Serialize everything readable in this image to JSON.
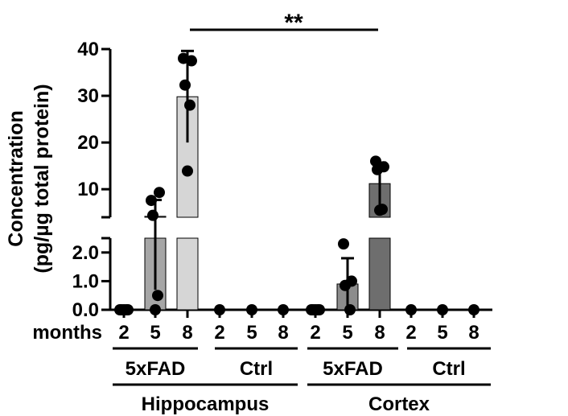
{
  "chart_data": {
    "type": "bar",
    "ylabel_line1": "Concentration",
    "ylabel_line2": "(pg/µg total protein)",
    "x_prefix": "months",
    "y_axis_upper": {
      "ylim": [
        4,
        40
      ],
      "ticks": [
        "10",
        "20",
        "30",
        "40"
      ],
      "tick_values": [
        10,
        20,
        30,
        40
      ]
    },
    "y_axis_lower": {
      "ylim": [
        0,
        2.5
      ],
      "ticks": [
        "0.0",
        "1.0",
        "2.0"
      ],
      "tick_values": [
        0,
        1,
        2
      ]
    },
    "groups": [
      {
        "tissue": "Hippocampus",
        "genotype": "5xFAD",
        "bars": [
          {
            "month": "2",
            "mean": 0.0,
            "sd": 0.0,
            "color": "#9e9e9e",
            "points": [
              0,
              0,
              0,
              0,
              0
            ]
          },
          {
            "month": "5",
            "mean": 4.2,
            "sd": 3.5,
            "color": "#a6a6a6",
            "points": [
              7.6,
              9.3,
              4.4,
              0.5,
              0.0
            ]
          },
          {
            "month": "8",
            "mean": 29.8,
            "sd": 9.8,
            "color": "#d6d6d6",
            "points": [
              38.0,
              37.5,
              32.3,
              28.0,
              13.9
            ]
          }
        ]
      },
      {
        "tissue": "Hippocampus",
        "genotype": "Ctrl",
        "bars": [
          {
            "month": "2",
            "mean": 0.0,
            "sd": 0.0,
            "color": "#9e9e9e",
            "points": [
              0.0
            ]
          },
          {
            "month": "5",
            "mean": 0.0,
            "sd": 0.0,
            "color": "#9e9e9e",
            "points": [
              0.0
            ]
          },
          {
            "month": "8",
            "mean": 0.0,
            "sd": 0.0,
            "color": "#9e9e9e",
            "points": [
              0.0
            ]
          }
        ]
      },
      {
        "tissue": "Cortex",
        "genotype": "5xFAD",
        "bars": [
          {
            "month": "2",
            "mean": 0.0,
            "sd": 0.0,
            "color": "#8c8c8c",
            "points": [
              0,
              0,
              0,
              0,
              0
            ]
          },
          {
            "month": "5",
            "mean": 0.9,
            "sd": 0.9,
            "color": "#8c8c8c",
            "points": [
              2.3,
              1.0,
              0.85,
              0.0
            ]
          },
          {
            "month": "8",
            "mean": 11.2,
            "sd": 4.5,
            "color": "#6e6e6e",
            "points": [
              16.0,
              14.8,
              14.2,
              5.7,
              5.5
            ]
          }
        ]
      },
      {
        "tissue": "Cortex",
        "genotype": "Ctrl",
        "bars": [
          {
            "month": "2",
            "mean": 0.0,
            "sd": 0.0,
            "color": "#9e9e9e",
            "points": [
              0.0
            ]
          },
          {
            "month": "5",
            "mean": 0.0,
            "sd": 0.0,
            "color": "#9e9e9e",
            "points": [
              0.0
            ]
          },
          {
            "month": "8",
            "mean": 0.0,
            "sd": 0.0,
            "color": "#9e9e9e",
            "points": [
              0.0
            ]
          }
        ]
      }
    ],
    "significance": {
      "label": "**",
      "from": "Hippocampus 5xFAD 8",
      "to": "Cortex 5xFAD 8"
    }
  }
}
